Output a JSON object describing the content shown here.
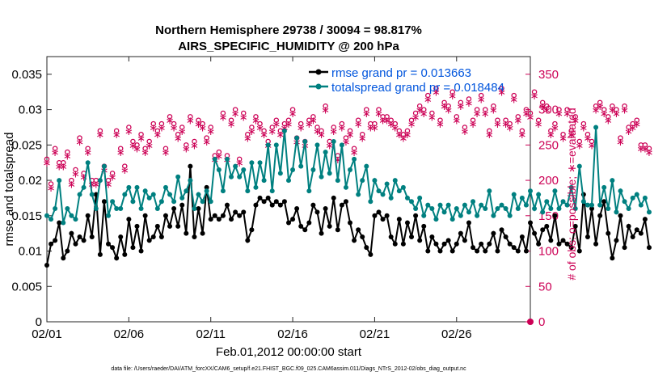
{
  "chart_data": {
    "type": "line",
    "title_line1": "Northern Hemisphere 29738 / 30094 = 98.817%",
    "title_line2": "AIRS_SPECIFIC_HUMIDITY @ 200 hPa",
    "xlabel": "Feb.01,2012 00:00:00 start",
    "ylabel": "rmse and totalspread",
    "y2label": "# of obs: o=possible; ∗=evaluated",
    "footnote": "data file: /Users/raeder/DAI/ATM_forcXX/CAM6_setup/f.e21.FHIST_BGC.f09_025.CAM6assim.011/Diags_NTrS_2012-02/obs_diag_output.nc",
    "xlim": [
      0,
      29.5
    ],
    "ylim": [
      0,
      0.0375
    ],
    "y2lim": [
      0,
      375
    ],
    "x_ticks": [
      0,
      5,
      10,
      15,
      20,
      25
    ],
    "x_tick_labels": [
      "02/01",
      "02/06",
      "02/11",
      "02/16",
      "02/21",
      "02/26"
    ],
    "y_ticks": [
      0,
      0.005,
      0.01,
      0.015,
      0.02,
      0.025,
      0.03,
      0.035
    ],
    "y_tick_labels": [
      "0",
      "0.005",
      "0.01",
      "0.015",
      "0.02",
      "0.025",
      "0.03",
      "0.035"
    ],
    "y2_ticks": [
      0,
      50,
      100,
      150,
      200,
      250,
      300,
      350
    ],
    "y2_tick_labels": [
      "0",
      "50",
      "100",
      "150",
      "200",
      "250",
      "300",
      "350"
    ],
    "dt": 0.25,
    "colors": {
      "rmse": "#000000",
      "totalspread": "#008080",
      "obs": "#cc0055",
      "legend_text": "#0055dd"
    },
    "series": [
      {
        "name": "rmse grand pr = 0.013663",
        "values": [
          0.008,
          0.011,
          0.0115,
          0.014,
          0.009,
          0.01,
          0.0125,
          0.011,
          0.012,
          0.0115,
          0.015,
          0.012,
          0.018,
          0.0095,
          0.017,
          0.011,
          0.0105,
          0.009,
          0.012,
          0.0095,
          0.0145,
          0.0105,
          0.0135,
          0.01,
          0.015,
          0.0115,
          0.012,
          0.0135,
          0.012,
          0.015,
          0.0135,
          0.016,
          0.0135,
          0.0165,
          0.0125,
          0.022,
          0.012,
          0.016,
          0.0125,
          0.019,
          0.0145,
          0.015,
          0.0145,
          0.015,
          0.0165,
          0.0145,
          0.0155,
          0.015,
          0.0155,
          0.0115,
          0.013,
          0.0165,
          0.0175,
          0.017,
          0.0175,
          0.0165,
          0.017,
          0.0165,
          0.017,
          0.014,
          0.0145,
          0.016,
          0.0135,
          0.013,
          0.014,
          0.0165,
          0.0155,
          0.0125,
          0.016,
          0.0135,
          0.0175,
          0.013,
          0.0165,
          0.017,
          0.014,
          0.0115,
          0.013,
          0.012,
          0.0105,
          0.0095,
          0.015,
          0.0155,
          0.0145,
          0.015,
          0.012,
          0.011,
          0.0145,
          0.011,
          0.014,
          0.012,
          0.015,
          0.0115,
          0.0135,
          0.01,
          0.012,
          0.011,
          0.01,
          0.011,
          0.0115,
          0.01,
          0.011,
          0.0125,
          0.0115,
          0.014,
          0.0105,
          0.01,
          0.011,
          0.01,
          0.011,
          0.0125,
          0.01,
          0.013,
          0.012,
          0.011,
          0.0105,
          0.01,
          0.012,
          0.01,
          0.014,
          0.0125,
          0.011,
          0.013,
          0.0135,
          0.0115,
          0.015,
          0.011,
          0.0115,
          0.011,
          0.0105,
          0.0135,
          0.01,
          0.018,
          0.012,
          0.016,
          0.011,
          0.015,
          0.017,
          0.0125,
          0.009,
          0.0115,
          0.015,
          0.0105,
          0.0135,
          0.012,
          0.013,
          0.0125,
          0.0145,
          0.0105
        ]
      },
      {
        "name": "totalspread grand pr = 0.018484",
        "values": [
          0.015,
          0.0145,
          0.016,
          0.02,
          0.014,
          0.016,
          0.015,
          0.0145,
          0.018,
          0.019,
          0.0225,
          0.018,
          0.016,
          0.02,
          0.022,
          0.015,
          0.017,
          0.016,
          0.016,
          0.018,
          0.019,
          0.017,
          0.019,
          0.016,
          0.0185,
          0.0175,
          0.018,
          0.016,
          0.017,
          0.019,
          0.018,
          0.017,
          0.0205,
          0.0175,
          0.0185,
          0.02,
          0.016,
          0.018,
          0.017,
          0.0185,
          0.017,
          0.023,
          0.0215,
          0.0185,
          0.023,
          0.0205,
          0.022,
          0.0205,
          0.0215,
          0.0185,
          0.0225,
          0.019,
          0.0225,
          0.02,
          0.025,
          0.0185,
          0.025,
          0.021,
          0.027,
          0.02,
          0.0215,
          0.026,
          0.022,
          0.0255,
          0.0185,
          0.0215,
          0.025,
          0.0205,
          0.024,
          0.021,
          0.0255,
          0.02,
          0.025,
          0.019,
          0.0215,
          0.023,
          0.018,
          0.02,
          0.022,
          0.017,
          0.02,
          0.0185,
          0.018,
          0.0195,
          0.0175,
          0.02,
          0.0185,
          0.019,
          0.0175,
          0.017,
          0.016,
          0.0175,
          0.015,
          0.0165,
          0.016,
          0.0145,
          0.0165,
          0.0155,
          0.0165,
          0.0145,
          0.016,
          0.015,
          0.0165,
          0.0155,
          0.017,
          0.015,
          0.0165,
          0.016,
          0.0185,
          0.015,
          0.016,
          0.0165,
          0.016,
          0.015,
          0.018,
          0.016,
          0.0175,
          0.0165,
          0.0185,
          0.016,
          0.018,
          0.0155,
          0.017,
          0.016,
          0.0185,
          0.016,
          0.017,
          0.0165,
          0.019,
          0.016,
          0.022,
          0.017,
          0.0165,
          0.0165,
          0.0275,
          0.0165,
          0.019,
          0.016,
          0.02,
          0.0155,
          0.0185,
          0.017,
          0.016,
          0.0175,
          0.018,
          0.0165,
          0.0175,
          0.0155
        ]
      }
    ],
    "obs_series": [
      {
        "name": "possible",
        "marker": "o",
        "values": [
          230,
          195,
          245,
          225,
          225,
          240,
          200,
          215,
          260,
          210,
          245,
          200,
          200,
          270,
          220,
          200,
          210,
          270,
          245,
          220,
          275,
          255,
          250,
          265,
          245,
          255,
          280,
          270,
          280,
          245,
          290,
          280,
          265,
          275,
          250,
          290,
          255,
          285,
          280,
          260,
          275,
          235,
          240,
          295,
          235,
          285,
          300,
          230,
          295,
          265,
          275,
          290,
          280,
          270,
          255,
          275,
          285,
          270,
          280,
          285,
          300,
          260,
          280,
          255,
          285,
          290,
          275,
          270,
          305,
          255,
          275,
          235,
          280,
          260,
          270,
          245,
          285,
          265,
          300,
          280,
          280,
          300,
          290,
          290,
          285,
          280,
          270,
          265,
          270,
          285,
          295,
          305,
          300,
          320,
          295,
          330,
          285,
          310,
          305,
          325,
          290,
          310,
          275,
          315,
          285,
          300,
          320,
          300,
          270,
          305,
          285,
          330,
          285,
          280,
          320,
          290,
          270,
          300,
          295,
          325,
          285,
          310,
          305,
          270,
          280,
          300,
          265,
          300,
          270,
          290,
          255,
          280,
          265,
          255,
          305,
          310,
          300,
          290,
          305,
          300,
          260,
          305,
          275,
          280,
          285,
          250,
          250,
          245
        ]
      },
      {
        "name": "evaluated",
        "marker": "*",
        "values": [
          225,
          190,
          240,
          220,
          220,
          235,
          195,
          210,
          255,
          205,
          240,
          195,
          195,
          265,
          215,
          195,
          205,
          265,
          240,
          215,
          270,
          250,
          245,
          260,
          240,
          250,
          275,
          265,
          275,
          240,
          285,
          275,
          260,
          270,
          245,
          285,
          250,
          280,
          275,
          255,
          270,
          230,
          235,
          290,
          230,
          280,
          295,
          225,
          290,
          260,
          270,
          285,
          275,
          265,
          250,
          270,
          280,
          265,
          275,
          280,
          295,
          255,
          275,
          250,
          280,
          285,
          270,
          265,
          300,
          250,
          270,
          230,
          275,
          255,
          265,
          240,
          280,
          260,
          295,
          275,
          275,
          295,
          285,
          285,
          280,
          275,
          265,
          260,
          265,
          280,
          290,
          300,
          295,
          315,
          290,
          325,
          280,
          305,
          300,
          320,
          285,
          305,
          270,
          310,
          280,
          295,
          315,
          295,
          265,
          300,
          280,
          325,
          280,
          275,
          315,
          285,
          265,
          295,
          290,
          320,
          280,
          305,
          300,
          265,
          275,
          295,
          260,
          295,
          265,
          285,
          250,
          275,
          260,
          250,
          300,
          305,
          295,
          285,
          300,
          295,
          255,
          300,
          270,
          275,
          280,
          245,
          245,
          240
        ]
      }
    ]
  }
}
